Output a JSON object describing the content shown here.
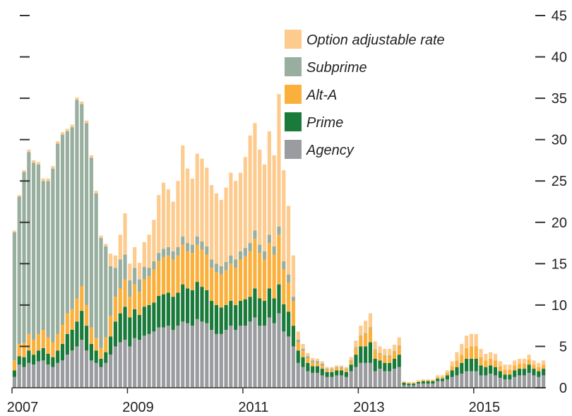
{
  "chart_data": {
    "type": "bar",
    "stacked": true,
    "title": "",
    "xlabel": "",
    "ylabel": "",
    "ylim": [
      0,
      45
    ],
    "y_ticks": [
      0,
      5,
      10,
      15,
      20,
      25,
      30,
      35,
      40,
      45
    ],
    "y_axis_side": "right",
    "x_tick_labels": [
      "2007",
      "2009",
      "2011",
      "2013",
      "2015"
    ],
    "x_tick_positions": [
      0,
      24,
      48,
      72,
      96
    ],
    "grid": false,
    "legend_placement": "top-center",
    "colors": {
      "Option adjustable rate": "#fdcb8e",
      "Subprime": "#98ae9e",
      "Alt-A": "#fbb03b",
      "Prime": "#1a7a3a",
      "Agency": "#9b9c9f"
    },
    "legend": [
      "Option adjustable rate",
      "Subprime",
      "Alt-A",
      "Prime",
      "Agency"
    ],
    "series": [
      {
        "name": "Agency",
        "values": [
          1.3,
          2.8,
          2.5,
          3.0,
          2.8,
          3.2,
          3.3,
          2.8,
          2.5,
          3.0,
          3.3,
          4.0,
          4.5,
          5.0,
          5.8,
          4.5,
          3.3,
          3.0,
          2.5,
          3.0,
          4.0,
          5.0,
          5.5,
          5.8,
          5.0,
          6.0,
          5.8,
          6.3,
          6.5,
          6.8,
          7.3,
          7.3,
          7.5,
          7.0,
          7.5,
          8.0,
          7.8,
          7.5,
          8.3,
          8.0,
          7.8,
          7.0,
          6.5,
          6.5,
          7.0,
          7.5,
          7.0,
          7.5,
          7.5,
          8.0,
          8.5,
          7.5,
          7.5,
          8.5,
          7.8,
          9.0,
          6.8,
          6.2,
          5.0,
          3.0,
          2.5,
          2.0,
          1.8,
          1.8,
          1.5,
          1.3,
          1.3,
          1.5,
          1.5,
          1.3,
          2.0,
          2.5,
          3.0,
          3.0,
          3.0,
          2.0,
          2.3,
          2.0,
          2.0,
          2.3,
          2.5,
          0.3,
          0.3,
          0.3,
          0.5,
          0.5,
          0.5,
          0.5,
          0.8,
          0.8,
          1.0,
          1.3,
          1.5,
          1.7,
          2.0,
          2.0,
          2.0,
          1.5,
          1.5,
          1.7,
          1.5,
          1.2,
          1.0,
          1.0,
          1.3,
          1.5,
          1.5,
          1.8,
          1.5,
          1.3,
          1.5
        ]
      },
      {
        "name": "Prime",
        "values": [
          0.8,
          1.0,
          1.2,
          1.5,
          1.2,
          1.3,
          1.5,
          1.3,
          1.2,
          1.5,
          2.0,
          2.5,
          2.5,
          3.0,
          3.5,
          3.0,
          2.0,
          1.5,
          1.0,
          1.3,
          2.2,
          3.0,
          3.5,
          4.0,
          3.5,
          3.5,
          3.0,
          3.5,
          3.5,
          3.5,
          3.8,
          4.0,
          4.0,
          4.0,
          4.0,
          4.5,
          4.2,
          4.3,
          4.5,
          4.2,
          4.0,
          3.5,
          3.5,
          3.2,
          3.0,
          3.0,
          3.0,
          3.0,
          3.2,
          3.0,
          3.5,
          3.3,
          3.0,
          3.5,
          3.0,
          3.5,
          3.3,
          3.0,
          2.5,
          1.5,
          1.2,
          1.0,
          0.8,
          0.8,
          0.8,
          0.6,
          0.6,
          0.6,
          0.6,
          0.6,
          0.8,
          1.5,
          2.0,
          2.0,
          2.5,
          1.5,
          1.0,
          1.0,
          1.0,
          1.2,
          1.5,
          0.3,
          0.2,
          0.2,
          0.2,
          0.3,
          0.3,
          0.3,
          0.3,
          0.3,
          0.5,
          0.8,
          1.0,
          1.3,
          1.5,
          1.5,
          1.5,
          1.2,
          1.0,
          1.0,
          1.0,
          0.8,
          0.6,
          0.6,
          0.8,
          0.8,
          0.8,
          1.0,
          0.8,
          0.7,
          0.8
        ]
      },
      {
        "name": "Alt-A",
        "values": [
          1.2,
          1.5,
          1.7,
          2.0,
          1.8,
          2.0,
          2.2,
          2.0,
          1.8,
          2.0,
          2.3,
          2.5,
          2.5,
          2.8,
          3.0,
          2.5,
          2.0,
          1.5,
          1.3,
          1.8,
          2.5,
          3.0,
          3.0,
          3.3,
          2.5,
          3.0,
          2.8,
          3.3,
          3.5,
          4.0,
          4.2,
          4.5,
          4.5,
          4.5,
          4.5,
          4.8,
          4.5,
          4.5,
          4.5,
          4.5,
          4.3,
          4.0,
          4.0,
          4.0,
          4.2,
          4.5,
          4.5,
          5.0,
          5.2,
          5.5,
          6.0,
          5.5,
          5.0,
          5.5,
          5.3,
          6.0,
          4.2,
          3.5,
          3.0,
          1.0,
          0.8,
          0.6,
          0.5,
          0.4,
          0.4,
          0.3,
          0.3,
          0.3,
          0.3,
          0.3,
          0.4,
          0.8,
          1.2,
          1.5,
          1.7,
          1.0,
          0.8,
          0.8,
          0.8,
          0.8,
          1.0,
          0.1,
          0.1,
          0.1,
          0.1,
          0.1,
          0.1,
          0.1,
          0.2,
          0.2,
          0.3,
          0.5,
          0.8,
          1.0,
          1.3,
          1.5,
          1.5,
          1.0,
          0.8,
          0.8,
          0.8,
          0.6,
          0.6,
          0.6,
          0.6,
          0.6,
          0.6,
          0.6,
          0.5,
          0.5,
          0.5
        ]
      },
      {
        "name": "Subprime",
        "values": [
          15.5,
          17.8,
          20.7,
          22.0,
          21.4,
          20.5,
          18.0,
          18.9,
          21.0,
          23.0,
          23.0,
          22.0,
          22.0,
          24.0,
          22.0,
          22.0,
          20.5,
          17.5,
          13.3,
          11.0,
          6.0,
          3.5,
          3.5,
          3.0,
          2.0,
          2.0,
          1.5,
          1.5,
          1.0,
          1.0,
          1.0,
          1.0,
          1.0,
          1.0,
          1.0,
          1.0,
          1.0,
          1.0,
          1.0,
          1.0,
          1.0,
          1.0,
          1.0,
          1.0,
          1.0,
          1.0,
          1.0,
          1.0,
          1.0,
          1.0,
          1.0,
          1.0,
          1.0,
          1.0,
          1.0,
          1.0,
          1.0,
          1.0,
          0.5,
          0.3,
          0.2,
          0.2,
          0.2,
          0.2,
          0.2,
          0.1,
          0.1,
          0.1,
          0.1,
          0.1,
          0.1,
          0.1,
          0.1,
          0.1,
          0.1,
          0.1,
          0.1,
          0.1,
          0.1,
          0.1,
          0.1,
          0.0,
          0.0,
          0.0,
          0.0,
          0.0,
          0.0,
          0.0,
          0.0,
          0.0,
          0.0,
          0.0,
          0.0,
          0.0,
          0.0,
          0.0,
          0.0,
          0.0,
          0.0,
          0.0,
          0.0,
          0.0,
          0.0,
          0.0,
          0.0,
          0.0,
          0.0,
          0.0,
          0.0,
          0.0,
          0.0
        ]
      },
      {
        "name": "Option adjustable rate",
        "values": [
          0.2,
          0.2,
          0.2,
          0.3,
          0.3,
          0.3,
          0.3,
          0.3,
          0.3,
          0.3,
          0.3,
          0.3,
          0.3,
          0.3,
          0.3,
          0.3,
          0.3,
          0.3,
          0.3,
          0.3,
          1.5,
          1.5,
          3.0,
          5.0,
          2.0,
          2.5,
          2.0,
          3.0,
          4.0,
          5.0,
          7.0,
          8.0,
          7.0,
          6.0,
          8.0,
          11.0,
          9.0,
          8.0,
          10.0,
          10.0,
          9.5,
          9.0,
          8.5,
          8.0,
          9.0,
          10.0,
          9.5,
          9.5,
          11.0,
          13.0,
          13.0,
          11.5,
          10.5,
          12.5,
          11.0,
          16.0,
          11.0,
          8.3,
          5.0,
          1.0,
          0.6,
          0.4,
          0.3,
          0.3,
          0.3,
          0.2,
          0.2,
          0.2,
          0.2,
          0.2,
          0.4,
          0.8,
          1.2,
          1.5,
          1.7,
          1.0,
          0.8,
          0.8,
          0.8,
          0.8,
          1.0,
          0.1,
          0.1,
          0.1,
          0.1,
          0.1,
          0.1,
          0.1,
          0.2,
          0.2,
          0.3,
          0.6,
          1.0,
          1.3,
          1.5,
          1.5,
          1.5,
          1.0,
          0.8,
          0.8,
          0.8,
          0.6,
          0.6,
          0.6,
          0.6,
          0.6,
          0.6,
          0.6,
          0.5,
          0.5,
          0.5
        ]
      }
    ]
  }
}
